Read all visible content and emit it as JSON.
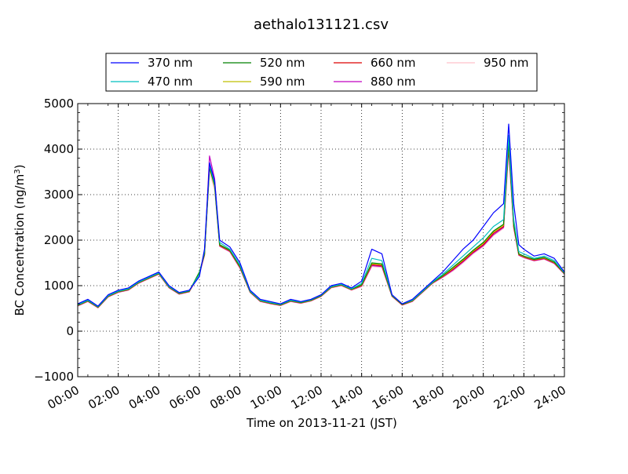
{
  "chart_data": {
    "type": "line",
    "title": "aethalo131121.csv",
    "xlabel": "Time on 2013-11-21 (JST)",
    "ylabel_main": "BC Concentration (ng/m",
    "ylabel_sup": "3",
    "ylabel_end": ")",
    "xlim": [
      "00:00",
      "24:00"
    ],
    "ylim": [
      -1000,
      5000
    ],
    "grid": true,
    "legend_position": "top",
    "x_ticks": [
      "00:00",
      "02:00",
      "04:00",
      "06:00",
      "08:00",
      "10:00",
      "12:00",
      "14:00",
      "16:00",
      "18:00",
      "20:00",
      "22:00",
      "24:00"
    ],
    "y_ticks": [
      "5000",
      "4000",
      "3000",
      "2000",
      "1000",
      "0",
      "−1000"
    ],
    "x_hours": [
      0,
      0.5,
      1,
      1.5,
      2,
      2.5,
      3,
      3.5,
      4,
      4.5,
      5,
      5.5,
      6,
      6.25,
      6.5,
      6.75,
      7,
      7.5,
      8,
      8.5,
      9,
      9.5,
      10,
      10.5,
      11,
      11.5,
      12,
      12.5,
      13,
      13.5,
      14,
      14.5,
      15,
      15.5,
      16,
      16.5,
      17,
      17.5,
      18,
      18.5,
      19,
      19.5,
      20,
      20.5,
      21,
      21.25,
      21.5,
      21.75,
      22,
      22.5,
      23,
      23.5,
      24
    ],
    "series": [
      {
        "name": "370 nm",
        "color": "#0000ff",
        "values": [
          600,
          700,
          550,
          800,
          900,
          950,
          1100,
          1200,
          1300,
          1000,
          850,
          900,
          1200,
          1800,
          3700,
          3300,
          2000,
          1850,
          1500,
          900,
          700,
          650,
          600,
          700,
          650,
          700,
          800,
          1000,
          1050,
          950,
          1100,
          1800,
          1700,
          800,
          600,
          700,
          900,
          1100,
          1300,
          1550,
          1800,
          2000,
          2300,
          2600,
          2800,
          4550,
          2800,
          1900,
          1800,
          1650,
          1700,
          1600,
          1300
        ]
      },
      {
        "name": "470 nm",
        "color": "#00bfbf",
        "values": [
          580,
          680,
          540,
          780,
          880,
          930,
          1080,
          1180,
          1280,
          980,
          840,
          890,
          1250,
          1750,
          3650,
          3250,
          1950,
          1800,
          1450,
          880,
          680,
          630,
          590,
          680,
          640,
          690,
          790,
          980,
          1030,
          930,
          1050,
          1600,
          1550,
          790,
          600,
          680,
          880,
          1080,
          1250,
          1450,
          1650,
          1850,
          2050,
          2300,
          2450,
          4300,
          2450,
          1750,
          1700,
          1600,
          1650,
          1550,
          1280
        ]
      },
      {
        "name": "520 nm",
        "color": "#008000",
        "values": [
          570,
          670,
          530,
          770,
          870,
          920,
          1070,
          1170,
          1270,
          970,
          830,
          880,
          1300,
          1700,
          3600,
          3200,
          1900,
          1780,
          1420,
          870,
          670,
          620,
          580,
          670,
          630,
          680,
          780,
          970,
          1020,
          920,
          1020,
          1500,
          1480,
          780,
          590,
          670,
          870,
          1070,
          1220,
          1400,
          1580,
          1780,
          1950,
          2200,
          2350,
          4150,
          2350,
          1700,
          1650,
          1580,
          1620,
          1520,
          1270
        ]
      },
      {
        "name": "590 nm",
        "color": "#bfbf00",
        "values": [
          565,
          665,
          525,
          765,
          865,
          915,
          1065,
          1165,
          1265,
          965,
          825,
          875,
          1280,
          1690,
          3580,
          3180,
          1890,
          1770,
          1410,
          865,
          665,
          615,
          575,
          665,
          625,
          675,
          775,
          965,
          1015,
          915,
          1010,
          1480,
          1460,
          775,
          585,
          665,
          865,
          1065,
          1210,
          1380,
          1560,
          1760,
          1930,
          2180,
          2330,
          4100,
          2320,
          1690,
          1640,
          1570,
          1610,
          1510,
          1265
        ]
      },
      {
        "name": "660 nm",
        "color": "#dd0000",
        "values": [
          560,
          660,
          520,
          760,
          860,
          910,
          1060,
          1160,
          1260,
          960,
          820,
          870,
          1270,
          1680,
          3600,
          3200,
          1880,
          1760,
          1400,
          860,
          660,
          610,
          570,
          660,
          620,
          670,
          770,
          960,
          1010,
          910,
          1000,
          1460,
          1440,
          770,
          580,
          660,
          860,
          1060,
          1200,
          1360,
          1540,
          1740,
          1900,
          2150,
          2300,
          4100,
          2300,
          1680,
          1630,
          1560,
          1600,
          1500,
          1260
        ]
      },
      {
        "name": "880 nm",
        "color": "#c000c0",
        "values": [
          555,
          655,
          515,
          755,
          855,
          905,
          1055,
          1155,
          1255,
          955,
          815,
          865,
          1260,
          1670,
          3850,
          3350,
          1870,
          1750,
          1390,
          855,
          655,
          605,
          565,
          655,
          615,
          665,
          765,
          955,
          1005,
          905,
          990,
          1440,
          1420,
          765,
          575,
          655,
          855,
          1055,
          1190,
          1340,
          1520,
          1720,
          1880,
          2120,
          2280,
          4000,
          2280,
          1670,
          1620,
          1550,
          1590,
          1490,
          1255
        ]
      },
      {
        "name": "950 nm",
        "color": "#ffc0cb",
        "values": [
          550,
          650,
          510,
          750,
          850,
          900,
          1050,
          1150,
          1250,
          950,
          810,
          860,
          1250,
          1660,
          3500,
          3100,
          1860,
          1740,
          1380,
          850,
          650,
          600,
          560,
          650,
          610,
          660,
          760,
          950,
          1000,
          900,
          980,
          1420,
          1400,
          760,
          570,
          650,
          850,
          1050,
          1180,
          1320,
          1500,
          1700,
          1860,
          2100,
          2260,
          3950,
          2260,
          1660,
          1610,
          1540,
          1580,
          1480,
          1250
        ]
      }
    ]
  }
}
